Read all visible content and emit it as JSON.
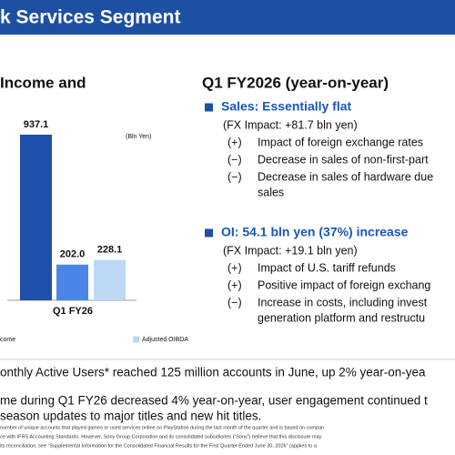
{
  "header": {
    "title": "k Services Segment"
  },
  "left": {
    "title": "Income and",
    "unit": "(Bln Yen)",
    "chart": {
      "type": "bar",
      "values": [
        937.1,
        202.0,
        228.1
      ],
      "value_labels": [
        "937.1",
        "202.0",
        "228.1"
      ],
      "colors": [
        "#1f4fa8",
        "#4a86e8",
        "#bcd8f5"
      ],
      "category": "Q1 FY26"
    },
    "legend": [
      "come",
      "Adjusted OIBDA"
    ]
  },
  "right": {
    "title": "Q1 FY2026 (year-on-year)",
    "sections": [
      {
        "heading": "Sales: Essentially flat",
        "fx": "(FX Impact: +81.7 bln yen)",
        "items": [
          {
            "sign": "(+)",
            "lines": [
              "Impact of foreign exchange rates"
            ]
          },
          {
            "sign": "(−)",
            "lines": [
              "Decrease in sales of non-first-part"
            ]
          },
          {
            "sign": "(−)",
            "lines": [
              "Decrease in sales of hardware due",
              "sales"
            ]
          }
        ]
      },
      {
        "heading": "OI: 54.1 bln yen (37%) increase",
        "fx": "(FX Impact: +19.1 bln yen)",
        "items": [
          {
            "sign": "(+)",
            "lines": [
              "Impact of U.S. tariff refunds"
            ]
          },
          {
            "sign": "(+)",
            "lines": [
              "Positive impact of foreign exchang"
            ]
          },
          {
            "sign": "(−)",
            "lines": [
              "Increase in costs, including invest",
              "generation platform and restructu"
            ]
          }
        ]
      }
    ]
  },
  "bottom": {
    "lines": [
      "onthly Active Users* reached 125 million accounts in June, up 2% year-on-yea",
      "me during Q1 FY26 decreased 4% year-on-year, user engagement continued t",
      "season updates to major titles and new hit titles."
    ],
    "footnotes": [
      "number of unique accounts that played games or used services online on PlayStation during the last month of the quarter and is based on compan",
      "ce with IFRS Accounting Standards. However, Sony Group Corporation and its consolidated subsidiaries (“Sony”) believe that this disclosure may",
      "its reconciliation, see “Supplemental Information for the Consolidated Financial Results for the First Quarter Ended June 30, 2026” (applies to a"
    ]
  }
}
